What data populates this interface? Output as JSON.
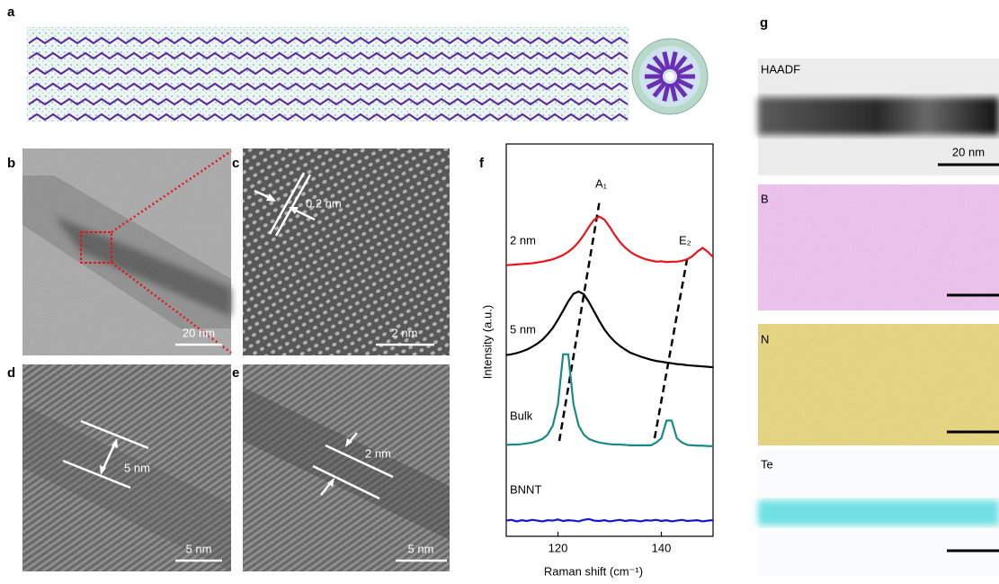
{
  "panel_labels": [
    "a",
    "b",
    "c",
    "d",
    "e",
    "f",
    "g"
  ],
  "b": {
    "scale_bar": "20 nm"
  },
  "c": {
    "spacing": "0.2 nm",
    "scale_bar": "2 nm"
  },
  "d": {
    "width": "5 nm",
    "scale_bar": "5 nm"
  },
  "e": {
    "width": "2 nm",
    "scale_bar": "5 nm"
  },
  "g": {
    "channels": [
      "HAADF",
      "B",
      "N",
      "Te"
    ],
    "scale_bar": "20 nm"
  },
  "chart_data": {
    "type": "line",
    "x_label": "Raman shift (cm⁻¹)",
    "y_label": "Intensity (a.u.)",
    "annotations": [
      "A₁",
      "E₂"
    ],
    "x": [
      110,
      111,
      112,
      113,
      114,
      115,
      116,
      117,
      118,
      119,
      120,
      121,
      122,
      123,
      124,
      125,
      126,
      127,
      128,
      129,
      130,
      131,
      132,
      133,
      134,
      135,
      136,
      137,
      138,
      139,
      140,
      141,
      142,
      143,
      144,
      145,
      146,
      147,
      148,
      149,
      150
    ],
    "series": [
      {
        "name": "2 nm",
        "color": "#e8141b",
        "values": [
          6.91,
          6.92,
          6.93,
          6.94,
          6.95,
          6.96,
          6.98,
          7.0,
          7.03,
          7.06,
          7.11,
          7.17,
          7.25,
          7.36,
          7.5,
          7.68,
          7.89,
          8.07,
          8.15,
          8.07,
          7.89,
          7.68,
          7.5,
          7.36,
          7.25,
          7.17,
          7.11,
          7.06,
          7.03,
          7.0,
          7.01,
          6.99,
          7.0,
          7.0,
          7.02,
          7.06,
          7.14,
          7.26,
          7.35,
          7.25,
          7.12
        ]
      },
      {
        "name": "5 nm",
        "color": "#000000",
        "values": [
          4.62,
          4.64,
          4.67,
          4.71,
          4.76,
          4.83,
          4.91,
          5.01,
          5.15,
          5.31,
          5.52,
          5.75,
          5.99,
          6.18,
          6.24,
          6.17,
          5.97,
          5.73,
          5.49,
          5.27,
          5.1,
          4.96,
          4.85,
          4.76,
          4.68,
          4.63,
          4.58,
          4.54,
          4.5,
          4.47,
          4.45,
          4.43,
          4.41,
          4.39,
          4.38,
          4.36,
          4.35,
          4.34,
          4.33,
          4.32,
          4.31
        ]
      },
      {
        "name": "Bulk",
        "color": "#1a8a86",
        "values": [
          2.33,
          2.34,
          2.34,
          2.35,
          2.37,
          2.39,
          2.43,
          2.48,
          2.59,
          2.82,
          3.37,
          4.64,
          4.64,
          3.37,
          2.82,
          2.59,
          2.48,
          2.43,
          2.39,
          2.37,
          2.35,
          2.34,
          2.34,
          2.33,
          2.32,
          2.32,
          2.32,
          2.32,
          2.32,
          2.39,
          2.5,
          2.95,
          2.95,
          2.5,
          2.39,
          2.33,
          2.32,
          2.31,
          2.31,
          2.3,
          2.3
        ]
      },
      {
        "name": "BNNT",
        "color": "#1515d4",
        "values": [
          0.4,
          0.42,
          0.38,
          0.41,
          0.39,
          0.42,
          0.4,
          0.38,
          0.41,
          0.4,
          0.43,
          0.39,
          0.41,
          0.4,
          0.38,
          0.42,
          0.44,
          0.4,
          0.39,
          0.41,
          0.38,
          0.4,
          0.42,
          0.39,
          0.41,
          0.4,
          0.38,
          0.41,
          0.4,
          0.42,
          0.39,
          0.41,
          0.38,
          0.4,
          0.42,
          0.39,
          0.4,
          0.41,
          0.38,
          0.4,
          0.41
        ]
      }
    ],
    "xlim": [
      110,
      150
    ],
    "ylim": [
      0,
      10
    ],
    "xticks": [
      120,
      140
    ]
  }
}
